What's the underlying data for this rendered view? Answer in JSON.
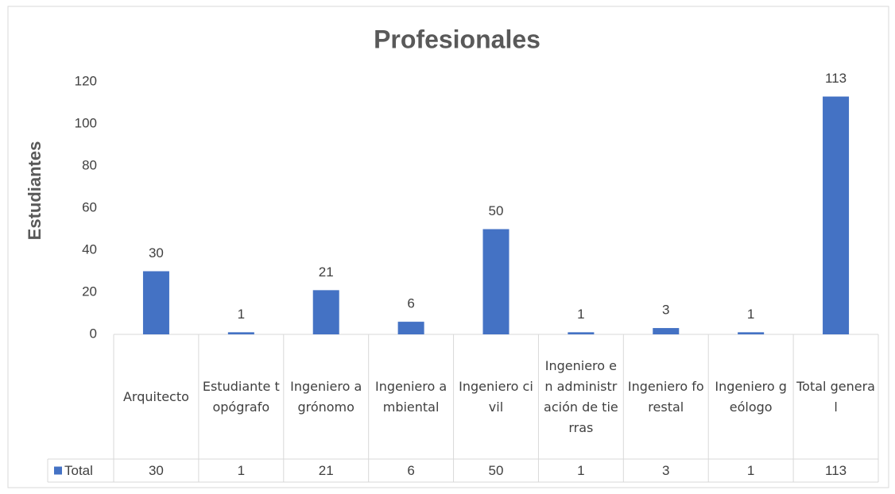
{
  "chart_data": {
    "type": "bar",
    "title": "Profesionales",
    "y_label": "Estudiantes",
    "categories": [
      "Arquitecto",
      "Estudiante topógrafo",
      "Ingeniero agrónomo",
      "Ingeniero ambiental",
      "Ingeniero civil",
      "Ingeniero en administración de tierras",
      "Ingeniero forestal",
      "Ingeniero geólogo",
      "Total general"
    ],
    "series": [
      {
        "name": "Total",
        "color": "#4472c4",
        "values": [
          30,
          1,
          21,
          6,
          50,
          1,
          3,
          1,
          113
        ]
      }
    ],
    "ylim": [
      0,
      120
    ],
    "yticks": [
      0,
      20,
      40,
      60,
      80,
      100,
      120
    ],
    "grid": false,
    "data_table": true
  }
}
